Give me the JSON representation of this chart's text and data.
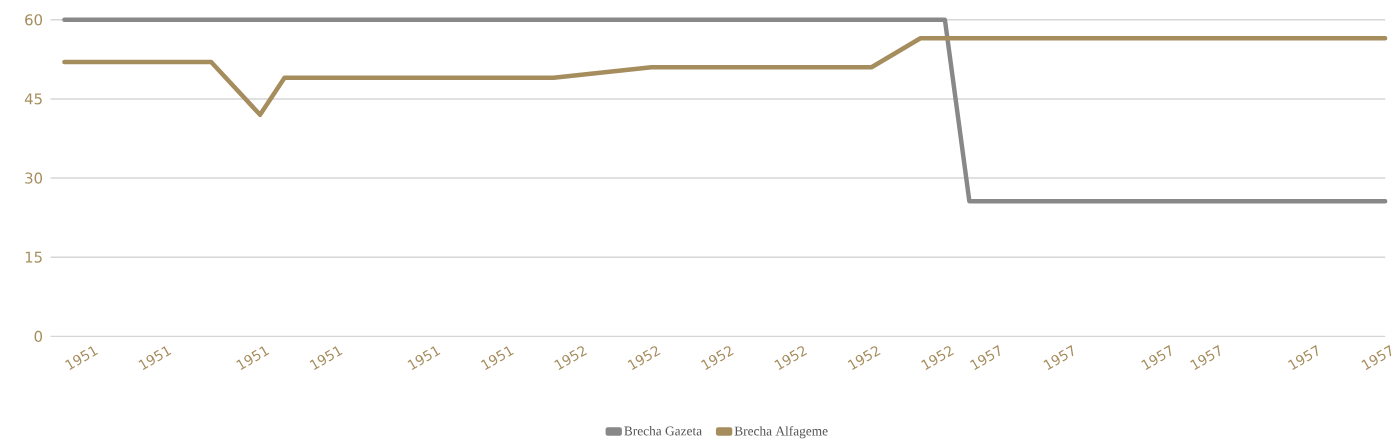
{
  "chart_data": {
    "type": "line",
    "categories": [
      null,
      "1951",
      null,
      null,
      "1951",
      null,
      null,
      null,
      "1951",
      null,
      null,
      "1951",
      null,
      null,
      null,
      "1951",
      null,
      null,
      "1951",
      null,
      null,
      "1952",
      null,
      null,
      "1952",
      null,
      null,
      "1952",
      null,
      null,
      "1952",
      null,
      null,
      "1952",
      null,
      null,
      "1952",
      null,
      "1957",
      null,
      null,
      "1957",
      null,
      null,
      null,
      "1957",
      null,
      "1957",
      null,
      null,
      null,
      "1957",
      null,
      null,
      "1957"
    ],
    "series": [
      {
        "name": "Brecha Gazeta",
        "color": "#888888",
        "values": [
          60,
          null,
          null,
          null,
          null,
          null,
          null,
          null,
          null,
          null,
          null,
          null,
          null,
          null,
          null,
          null,
          null,
          null,
          null,
          null,
          null,
          null,
          null,
          null,
          null,
          null,
          null,
          null,
          null,
          null,
          null,
          null,
          null,
          null,
          null,
          null,
          60,
          25.6,
          null,
          null,
          null,
          null,
          null,
          null,
          null,
          null,
          null,
          null,
          null,
          null,
          null,
          null,
          null,
          null,
          25.6
        ]
      },
      {
        "name": "Brecha Alfageme",
        "color": "#a68d5e",
        "values": [
          52,
          null,
          null,
          null,
          null,
          null,
          52,
          null,
          42,
          49,
          null,
          null,
          null,
          null,
          null,
          null,
          null,
          null,
          null,
          null,
          49,
          null,
          null,
          null,
          51,
          null,
          null,
          null,
          null,
          null,
          null,
          null,
          null,
          51,
          null,
          56.5,
          null,
          null,
          null,
          null,
          null,
          null,
          null,
          null,
          null,
          null,
          null,
          null,
          null,
          null,
          null,
          null,
          null,
          null,
          56.5
        ]
      }
    ],
    "ylim": [
      0,
      60
    ],
    "yticks": [
      0,
      15,
      30,
      45,
      60
    ],
    "grid": "y",
    "legend": "bottom",
    "marker": "none",
    "line_style": "solid"
  }
}
